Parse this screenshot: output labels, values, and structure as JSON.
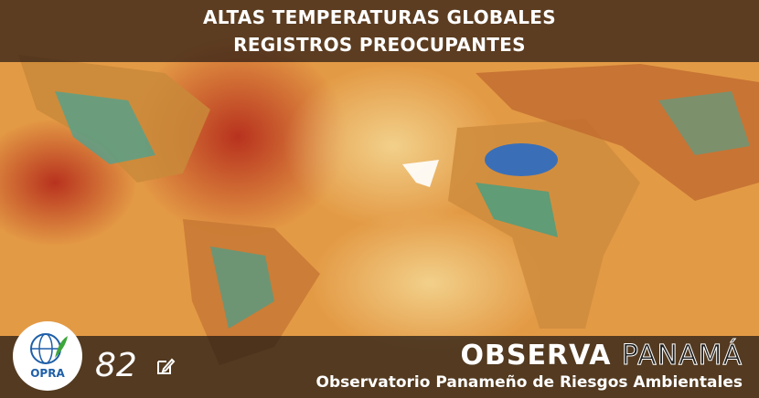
{
  "header": {
    "title_lines": [
      "ALTAS TEMPERATURAS GLOBALES",
      "REGISTROS PREOCUPANTES"
    ]
  },
  "logo": {
    "label": "OPRA"
  },
  "counter": {
    "value": 82
  },
  "brand": {
    "name_primary": "OBSERVA",
    "name_secondary": "PANAMÁ",
    "subtitle": "Observatorio Panameño de Riesgos Ambientales"
  }
}
